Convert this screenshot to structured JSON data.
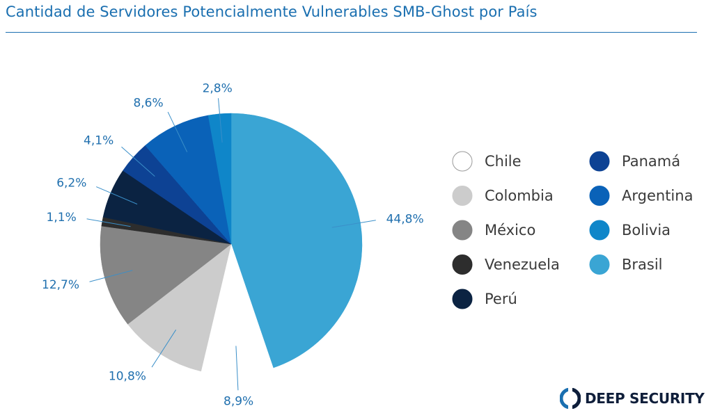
{
  "header": {
    "title": "Cantidad de Servidores Potencialmente Vulnerables SMB-Ghost por País"
  },
  "brand": {
    "name": "DEEP SECURITY",
    "logo_icon": "deep-security-logo-icon"
  },
  "chart_data": {
    "type": "pie",
    "title": "Cantidad de Servidores Potencialmente Vulnerables SMB-Ghost por País",
    "start_angle_deg": 0,
    "direction": "clockwise",
    "legend_position": "right",
    "slices": [
      {
        "name": "Brasil",
        "value": 44.8,
        "label": "44,8%",
        "color": "#3aa5d4"
      },
      {
        "name": "Chile",
        "value": 8.9,
        "label": "8,9%",
        "color": "#ffffff"
      },
      {
        "name": "Colombia",
        "value": 10.8,
        "label": "10,8%",
        "color": "#cccccc"
      },
      {
        "name": "México",
        "value": 12.7,
        "label": "12,7%",
        "color": "#858585"
      },
      {
        "name": "Venezuela",
        "value": 1.1,
        "label": "1,1%",
        "color": "#2d2d2d"
      },
      {
        "name": "Perú",
        "value": 6.2,
        "label": "6,2%",
        "color": "#0b2342"
      },
      {
        "name": "Panamá",
        "value": 4.1,
        "label": "4,1%",
        "color": "#0d4294"
      },
      {
        "name": "Argentina",
        "value": 8.6,
        "label": "8,6%",
        "color": "#0a62b8"
      },
      {
        "name": "Bolivia",
        "value": 2.8,
        "label": "2,8%",
        "color": "#0f86c9"
      }
    ],
    "legend": [
      {
        "name": "Chile",
        "color": "#ffffff"
      },
      {
        "name": "Colombia",
        "color": "#cccccc"
      },
      {
        "name": "México",
        "color": "#858585"
      },
      {
        "name": "Venezuela",
        "color": "#2d2d2d"
      },
      {
        "name": "Perú",
        "color": "#0b2342"
      },
      {
        "name": "Panamá",
        "color": "#0d4294"
      },
      {
        "name": "Argentina",
        "color": "#0a62b8"
      },
      {
        "name": "Bolivia",
        "color": "#0f86c9"
      },
      {
        "name": "Brasil",
        "color": "#3aa5d4"
      }
    ]
  }
}
